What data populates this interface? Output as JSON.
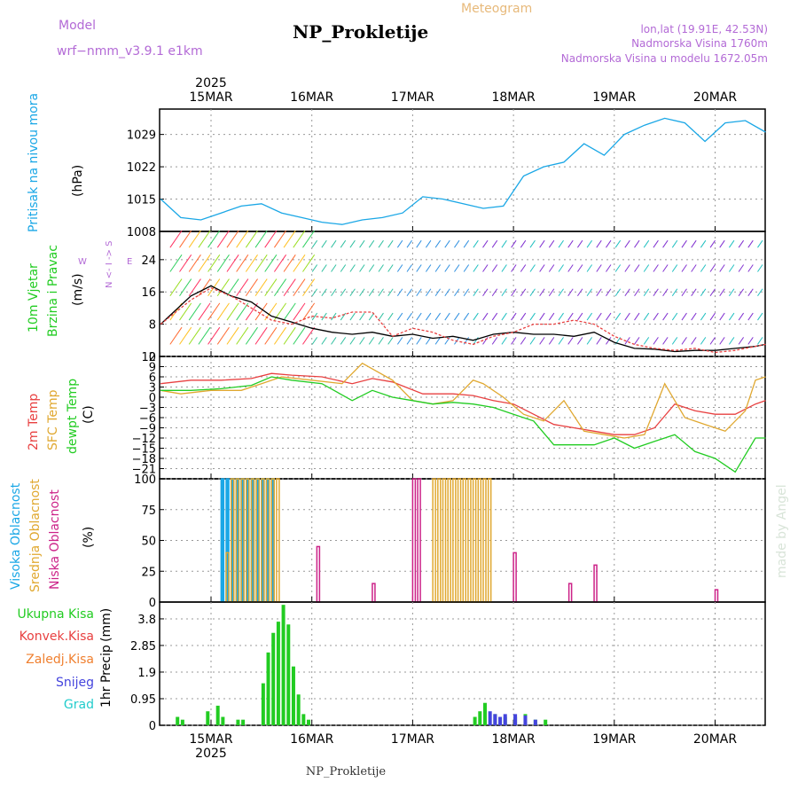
{
  "header": {
    "model_label": "Model",
    "model_name": "wrf−nmm_v3.9.1  e1km",
    "meteogram_label": "Meteogram",
    "station": "NP_Prokletije",
    "location": "lon,lat (19.91E, 42.53N)",
    "elevation": "Nadmorska Visina 1760m",
    "model_elevation": "Nadmorska Visina u modelu 1672.05m",
    "footer_station": "NP_Prokletije",
    "watermark": "made by Angel"
  },
  "time_axis": {
    "year": "2025",
    "labels": [
      "15MAR",
      "16MAR",
      "17MAR",
      "18MAR",
      "19MAR",
      "20MAR"
    ]
  },
  "colors": {
    "pressure": "#1aa7e6",
    "temp2m": "#e84040",
    "sfc_temp": "#e0a830",
    "dewpoint": "#22cc22",
    "high_cloud": "#1aa7e6",
    "mid_cloud": "#e0a830",
    "low_cloud": "#cc2288",
    "total_precip": "#22cc22",
    "convective": "#e84040",
    "freezing": "#f08030",
    "snow": "#4444dd",
    "hail": "#22cccc",
    "wind_speed": "#000000",
    "gust": "#e84040"
  },
  "chart_data": [
    {
      "id": "pressure",
      "type": "line",
      "ylabel_1": "Pritisak na nivou mora",
      "ylabel_2": "(hPa)",
      "yticks": [
        1008,
        1015,
        1022,
        1029
      ],
      "ylim": [
        1008,
        1034.5
      ],
      "series": [
        {
          "name": "",
          "x": [
            0,
            0.2,
            0.4,
            0.6,
            0.8,
            1.0,
            1.2,
            1.4,
            1.6,
            1.8,
            2.0,
            2.2,
            2.4,
            2.6,
            2.8,
            3.0,
            3.2,
            3.4,
            3.6,
            3.8,
            4.0,
            4.2,
            4.4,
            4.6,
            4.8,
            5.0,
            5.2,
            5.4,
            5.6,
            5.8,
            6.0
          ],
          "y": [
            1015,
            1011,
            1010.5,
            1012,
            1013.5,
            1014,
            1012,
            1011,
            1010,
            1009.5,
            1010.5,
            1011,
            1012,
            1015.5,
            1015,
            1014,
            1013,
            1013.5,
            1020,
            1022,
            1023,
            1027,
            1024.5,
            1029,
            1031,
            1032.5,
            1031.5,
            1027.5,
            1031.5,
            1032,
            1029.5
          ]
        }
      ]
    },
    {
      "id": "wind",
      "type": "line",
      "ylabel_1": "10m Vjetar",
      "ylabel_2": "Brzina i Pravac",
      "ylabel_3": "(m/s)",
      "compass": "N <- I -> S",
      "compass_w": "W",
      "compass_e": "E",
      "yticks": [
        0,
        8,
        16,
        24
      ],
      "ylim": [
        0,
        31
      ],
      "series": [
        {
          "name": "",
          "x": [
            0,
            0.3,
            0.5,
            0.7,
            0.9,
            1.1,
            1.3,
            1.5,
            1.7,
            1.9,
            2.1,
            2.3,
            2.5,
            2.7,
            2.9,
            3.1,
            3.3,
            3.5,
            3.7,
            3.9,
            4.1,
            4.3,
            4.5,
            4.7,
            4.9,
            5.1,
            5.3,
            5.5,
            5.7,
            5.9,
            6.0
          ],
          "y": [
            8,
            15,
            17.5,
            15,
            13.5,
            10,
            8.5,
            7,
            6,
            5.5,
            6,
            5,
            5.5,
            4.5,
            5,
            4,
            5.5,
            6,
            5.5,
            5.5,
            5,
            6,
            3.5,
            2,
            1.8,
            1.2,
            1.5,
            1.5,
            2,
            2.5,
            3
          ]
        },
        {
          "name": "",
          "x": [
            0,
            0.3,
            0.5,
            0.7,
            0.9,
            1.1,
            1.3,
            1.5,
            1.7,
            1.9,
            2.1,
            2.3,
            2.5,
            2.7,
            2.9,
            3.1,
            3.3,
            3.5,
            3.7,
            3.9,
            4.1,
            4.3,
            4.5,
            4.7,
            4.9,
            5.1,
            5.3,
            5.5,
            5.7,
            5.9,
            6.0
          ],
          "y": [
            8,
            14,
            17,
            15,
            12,
            9,
            8,
            10,
            9.5,
            11,
            11,
            5,
            7,
            6,
            4,
            3,
            5,
            6,
            8,
            8,
            9,
            8,
            5,
            3,
            2,
            1.5,
            2,
            1,
            1.5,
            2.5,
            3
          ]
        }
      ]
    },
    {
      "id": "temperature",
      "type": "line",
      "ylabel_1": "2m Temp",
      "ylabel_2": "SFC Temp",
      "ylabel_3": "dewpt Temp",
      "ylabel_4": "(C)",
      "yticks": [
        -21,
        -18,
        -15,
        -12,
        -9,
        -6,
        -3,
        0,
        3,
        6,
        9,
        12
      ],
      "ylim": [
        -24,
        12
      ],
      "series": [
        {
          "name": "2m Temp",
          "x": [
            0,
            0.3,
            0.6,
            0.9,
            1.1,
            1.3,
            1.6,
            1.9,
            2.1,
            2.3,
            2.6,
            2.9,
            3.1,
            3.3,
            3.5,
            3.7,
            3.9,
            4.1,
            4.3,
            4.5,
            4.7,
            4.9,
            5.1,
            5.3,
            5.5,
            5.7,
            5.9,
            6.0
          ],
          "y": [
            4,
            5,
            5,
            5.5,
            7,
            6.5,
            6,
            4,
            5.5,
            4.5,
            1,
            1,
            0.5,
            -1,
            -2,
            -5,
            -8,
            -9,
            -10,
            -11,
            -11,
            -9,
            -2,
            -4,
            -5,
            -5,
            -2,
            -1
          ]
        },
        {
          "name": "SFC Temp",
          "x": [
            0,
            0.2,
            0.5,
            0.8,
            1.0,
            1.2,
            1.5,
            1.8,
            2.0,
            2.3,
            2.5,
            2.7,
            2.9,
            3.1,
            3.2,
            3.4,
            3.6,
            3.8,
            4.0,
            4.2,
            4.4,
            4.6,
            4.8,
            5.0,
            5.2,
            5.4,
            5.6,
            5.8,
            5.9,
            6.0
          ],
          "y": [
            2,
            1,
            2,
            2,
            4,
            6,
            5,
            4,
            10,
            5,
            -1,
            -2,
            -1,
            5,
            4,
            0,
            -5,
            -7,
            -1,
            -10,
            -11,
            -12,
            -11,
            4,
            -6,
            -8,
            -10,
            -4,
            5,
            6
          ]
        },
        {
          "name": "dewpt Temp",
          "x": [
            0,
            0.3,
            0.6,
            0.9,
            1.1,
            1.3,
            1.6,
            1.9,
            2.1,
            2.3,
            2.5,
            2.7,
            2.9,
            3.1,
            3.3,
            3.5,
            3.7,
            3.9,
            4.1,
            4.3,
            4.5,
            4.7,
            4.9,
            5.1,
            5.3,
            5.5,
            5.7,
            5.9,
            6.0
          ],
          "y": [
            2,
            2,
            2.5,
            3.5,
            6,
            5,
            4,
            -1,
            2,
            0,
            -1,
            -2,
            -1.5,
            -2,
            -3,
            -5,
            -7,
            -14,
            -14,
            -14,
            -12,
            -15,
            -13,
            -11,
            -16,
            -18,
            -22,
            -12,
            -12
          ]
        }
      ]
    },
    {
      "id": "clouds",
      "type": "bar",
      "ylabel_1": "Visoka Oblacnost",
      "ylabel_2": "Srednja Oblacnost",
      "ylabel_3": "Niska Oblacnost",
      "ylabel_4": "(%)",
      "yticks": [
        0,
        25,
        50,
        75,
        100
      ],
      "ylim": [
        0,
        100
      ],
      "series": [
        {
          "name": "Visoka Oblacnost",
          "x": [
            0.6,
            0.65,
            0.7,
            0.75,
            0.8,
            0.85,
            0.9,
            0.95,
            1.0,
            1.05,
            1.1
          ],
          "y": [
            100,
            100,
            100,
            100,
            100,
            100,
            100,
            100,
            100,
            100,
            100
          ]
        },
        {
          "name": "Srednja Oblacnost",
          "x": [
            0.65,
            0.7,
            0.75,
            0.8,
            0.85,
            0.9,
            0.95,
            1.0,
            1.05,
            1.1,
            1.15,
            2.7,
            2.75,
            2.8,
            2.85,
            2.9,
            2.95,
            3.0,
            3.05,
            3.1,
            3.15,
            3.2,
            3.25
          ],
          "y": [
            40,
            100,
            100,
            100,
            100,
            100,
            100,
            100,
            100,
            100,
            100,
            100,
            100,
            100,
            100,
            100,
            100,
            100,
            100,
            100,
            100,
            100,
            100
          ]
        },
        {
          "name": "Niska Oblacnost",
          "x": [
            1.55,
            2.1,
            2.5,
            2.55,
            3.5,
            4.05,
            4.3,
            5.5
          ],
          "y": [
            45,
            15,
            100,
            100,
            40,
            15,
            30,
            10
          ]
        }
      ]
    },
    {
      "id": "precip",
      "type": "bar",
      "ylabel_1": "1hr Precip",
      "ylabel_2": "(mm)",
      "yticks": [
        0,
        0.95,
        1.9,
        2.85,
        3.8
      ],
      "yticklabels": [
        "0",
        "0.95",
        "1.9",
        "2.85",
        "3.8"
      ],
      "ylim": [
        0,
        4.4
      ],
      "series": [
        {
          "name": "Ukupna Kisa",
          "x": [
            0.15,
            0.2,
            0.45,
            0.55,
            0.6,
            0.75,
            0.8,
            1.0,
            1.05,
            1.1,
            1.15,
            1.2,
            1.25,
            1.3,
            1.35,
            1.4,
            1.45,
            3.1,
            3.15,
            3.2,
            3.3,
            3.4,
            3.5,
            3.6,
            3.7,
            3.8
          ],
          "y": [
            0.3,
            0.2,
            0.5,
            0.7,
            0.3,
            0.2,
            0.2,
            1.5,
            2.6,
            3.3,
            3.7,
            4.3,
            3.6,
            2.1,
            1.1,
            0.4,
            0.2,
            0.3,
            0.5,
            0.8,
            0.4,
            0.3,
            0.3,
            0.4,
            0.2,
            0.2
          ]
        },
        {
          "name": "Snijeg",
          "x": [
            3.25,
            3.3,
            3.35,
            3.4,
            3.5,
            3.6,
            3.7
          ],
          "y": [
            0.5,
            0.4,
            0.3,
            0.4,
            0.4,
            0.35,
            0.2
          ]
        }
      ],
      "legend": [
        "Ukupna Kisa",
        "Konvek.Kisa",
        "Zaledj.Kisa",
        "Snijeg",
        "Grad"
      ]
    }
  ]
}
